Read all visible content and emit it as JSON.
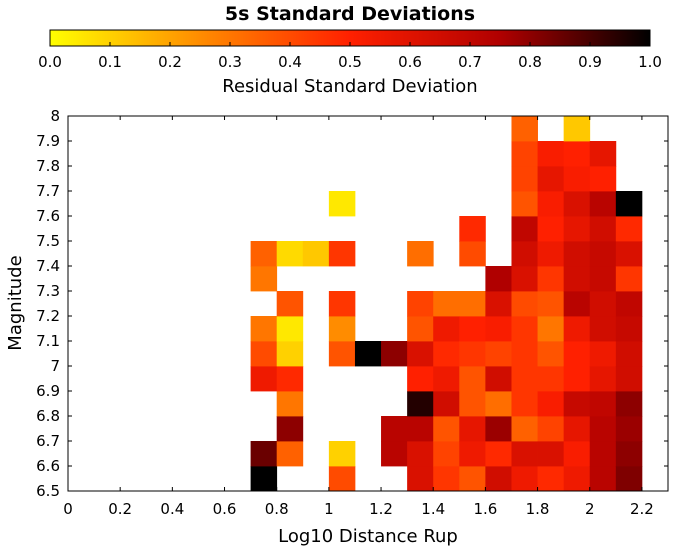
{
  "chart_data": {
    "type": "heatmap",
    "title": "5s Standard Deviations",
    "xlabel": "Log10 Distance Rup",
    "ylabel": "Magnitude",
    "colorbar_label": "Residual Standard Deviation",
    "colorscale": [
      "#ffff00",
      "#ff8c00",
      "#ff2000",
      "#b00000",
      "#000000"
    ],
    "colorbar_range": [
      0,
      1
    ],
    "colorbar_ticks": [
      "0.0",
      "0.1",
      "0.2",
      "0.3",
      "0.4",
      "0.5",
      "0.6",
      "0.7",
      "0.8",
      "0.9",
      "1.0"
    ],
    "xlim": [
      0,
      2.3
    ],
    "ylim": [
      6.5,
      8
    ],
    "xticks": [
      "0",
      "0.2",
      "0.4",
      "0.6",
      "0.8",
      "1",
      "1.2",
      "1.4",
      "1.6",
      "1.8",
      "2",
      "2.2"
    ],
    "yticks": [
      "6.5",
      "6.6",
      "6.7",
      "6.8",
      "6.9",
      "7",
      "7.1",
      "7.2",
      "7.3",
      "7.4",
      "7.5",
      "7.6",
      "7.7",
      "7.8",
      "7.9",
      "8"
    ],
    "grid": false,
    "x_bin_width": 0.1,
    "y_bin_height": 0.1,
    "cells": [
      {
        "x": 0.7,
        "y": 6.5,
        "v": 1.0
      },
      {
        "x": 0.7,
        "y": 6.6,
        "v": 0.85
      },
      {
        "x": 0.7,
        "y": 6.9,
        "v": 0.55
      },
      {
        "x": 0.7,
        "y": 7.0,
        "v": 0.4
      },
      {
        "x": 0.7,
        "y": 7.1,
        "v": 0.3
      },
      {
        "x": 0.7,
        "y": 7.3,
        "v": 0.3
      },
      {
        "x": 0.7,
        "y": 7.4,
        "v": 0.35
      },
      {
        "x": 0.8,
        "y": 6.6,
        "v": 0.35
      },
      {
        "x": 0.8,
        "y": 6.7,
        "v": 0.8
      },
      {
        "x": 0.8,
        "y": 6.8,
        "v": 0.3
      },
      {
        "x": 0.8,
        "y": 6.9,
        "v": 0.48
      },
      {
        "x": 0.8,
        "y": 7.0,
        "v": 0.1
      },
      {
        "x": 0.8,
        "y": 7.1,
        "v": 0.05
      },
      {
        "x": 0.8,
        "y": 7.2,
        "v": 0.38
      },
      {
        "x": 0.8,
        "y": 7.4,
        "v": 0.08
      },
      {
        "x": 0.9,
        "y": 7.4,
        "v": 0.12
      },
      {
        "x": 1.0,
        "y": 6.5,
        "v": 0.4
      },
      {
        "x": 1.0,
        "y": 6.6,
        "v": 0.1
      },
      {
        "x": 1.0,
        "y": 7.0,
        "v": 0.38
      },
      {
        "x": 1.0,
        "y": 7.1,
        "v": 0.25
      },
      {
        "x": 1.0,
        "y": 7.2,
        "v": 0.45
      },
      {
        "x": 1.0,
        "y": 7.4,
        "v": 0.45
      },
      {
        "x": 1.0,
        "y": 7.6,
        "v": 0.05
      },
      {
        "x": 1.1,
        "y": 7.0,
        "v": 1.0
      },
      {
        "x": 1.2,
        "y": 6.6,
        "v": 0.72
      },
      {
        "x": 1.2,
        "y": 6.7,
        "v": 0.72
      },
      {
        "x": 1.2,
        "y": 7.0,
        "v": 0.8
      },
      {
        "x": 1.3,
        "y": 6.5,
        "v": 0.62
      },
      {
        "x": 1.3,
        "y": 6.6,
        "v": 0.62
      },
      {
        "x": 1.3,
        "y": 6.7,
        "v": 0.72
      },
      {
        "x": 1.3,
        "y": 6.8,
        "v": 0.95
      },
      {
        "x": 1.3,
        "y": 6.9,
        "v": 0.5
      },
      {
        "x": 1.3,
        "y": 7.0,
        "v": 0.62
      },
      {
        "x": 1.3,
        "y": 7.1,
        "v": 0.38
      },
      {
        "x": 1.3,
        "y": 7.2,
        "v": 0.42
      },
      {
        "x": 1.3,
        "y": 7.4,
        "v": 0.32
      },
      {
        "x": 1.4,
        "y": 6.5,
        "v": 0.45
      },
      {
        "x": 1.4,
        "y": 6.6,
        "v": 0.42
      },
      {
        "x": 1.4,
        "y": 6.7,
        "v": 0.38
      },
      {
        "x": 1.4,
        "y": 6.8,
        "v": 0.65
      },
      {
        "x": 1.4,
        "y": 6.9,
        "v": 0.55
      },
      {
        "x": 1.4,
        "y": 7.0,
        "v": 0.48
      },
      {
        "x": 1.4,
        "y": 7.1,
        "v": 0.55
      },
      {
        "x": 1.4,
        "y": 7.2,
        "v": 0.32
      },
      {
        "x": 1.5,
        "y": 6.5,
        "v": 0.38
      },
      {
        "x": 1.5,
        "y": 6.6,
        "v": 0.55
      },
      {
        "x": 1.5,
        "y": 6.7,
        "v": 0.58
      },
      {
        "x": 1.5,
        "y": 6.8,
        "v": 0.38
      },
      {
        "x": 1.5,
        "y": 6.9,
        "v": 0.38
      },
      {
        "x": 1.5,
        "y": 7.0,
        "v": 0.45
      },
      {
        "x": 1.5,
        "y": 7.1,
        "v": 0.5
      },
      {
        "x": 1.5,
        "y": 7.2,
        "v": 0.32
      },
      {
        "x": 1.5,
        "y": 7.4,
        "v": 0.4
      },
      {
        "x": 1.5,
        "y": 7.5,
        "v": 0.48
      },
      {
        "x": 1.6,
        "y": 6.5,
        "v": 0.65
      },
      {
        "x": 1.6,
        "y": 6.6,
        "v": 0.48
      },
      {
        "x": 1.6,
        "y": 6.7,
        "v": 0.78
      },
      {
        "x": 1.6,
        "y": 6.8,
        "v": 0.32
      },
      {
        "x": 1.6,
        "y": 6.9,
        "v": 0.65
      },
      {
        "x": 1.6,
        "y": 7.0,
        "v": 0.42
      },
      {
        "x": 1.6,
        "y": 7.1,
        "v": 0.52
      },
      {
        "x": 1.6,
        "y": 7.2,
        "v": 0.62
      },
      {
        "x": 1.6,
        "y": 7.3,
        "v": 0.75
      },
      {
        "x": 1.7,
        "y": 6.5,
        "v": 0.55
      },
      {
        "x": 1.7,
        "y": 6.6,
        "v": 0.62
      },
      {
        "x": 1.7,
        "y": 6.7,
        "v": 0.35
      },
      {
        "x": 1.7,
        "y": 6.8,
        "v": 0.45
      },
      {
        "x": 1.7,
        "y": 6.9,
        "v": 0.45
      },
      {
        "x": 1.7,
        "y": 7.0,
        "v": 0.45
      },
      {
        "x": 1.7,
        "y": 7.1,
        "v": 0.45
      },
      {
        "x": 1.7,
        "y": 7.2,
        "v": 0.4
      },
      {
        "x": 1.7,
        "y": 7.3,
        "v": 0.62
      },
      {
        "x": 1.7,
        "y": 7.4,
        "v": 0.65
      },
      {
        "x": 1.7,
        "y": 7.5,
        "v": 0.7
      },
      {
        "x": 1.7,
        "y": 7.6,
        "v": 0.38
      },
      {
        "x": 1.7,
        "y": 7.7,
        "v": 0.42
      },
      {
        "x": 1.7,
        "y": 7.8,
        "v": 0.42
      },
      {
        "x": 1.7,
        "y": 7.9,
        "v": 0.35
      },
      {
        "x": 1.8,
        "y": 6.5,
        "v": 0.48
      },
      {
        "x": 1.8,
        "y": 6.6,
        "v": 0.62
      },
      {
        "x": 1.8,
        "y": 6.7,
        "v": 0.42
      },
      {
        "x": 1.8,
        "y": 6.8,
        "v": 0.52
      },
      {
        "x": 1.8,
        "y": 6.9,
        "v": 0.45
      },
      {
        "x": 1.8,
        "y": 7.0,
        "v": 0.38
      },
      {
        "x": 1.8,
        "y": 7.1,
        "v": 0.3
      },
      {
        "x": 1.8,
        "y": 7.2,
        "v": 0.38
      },
      {
        "x": 1.8,
        "y": 7.3,
        "v": 0.45
      },
      {
        "x": 1.8,
        "y": 7.4,
        "v": 0.55
      },
      {
        "x": 1.8,
        "y": 7.5,
        "v": 0.5
      },
      {
        "x": 1.8,
        "y": 7.6,
        "v": 0.52
      },
      {
        "x": 1.8,
        "y": 7.7,
        "v": 0.58
      },
      {
        "x": 1.8,
        "y": 7.8,
        "v": 0.52
      },
      {
        "x": 1.9,
        "y": 6.5,
        "v": 0.55
      },
      {
        "x": 1.9,
        "y": 6.6,
        "v": 0.52
      },
      {
        "x": 1.9,
        "y": 6.7,
        "v": 0.58
      },
      {
        "x": 1.9,
        "y": 6.8,
        "v": 0.68
      },
      {
        "x": 1.9,
        "y": 6.9,
        "v": 0.5
      },
      {
        "x": 1.9,
        "y": 7.0,
        "v": 0.5
      },
      {
        "x": 1.9,
        "y": 7.1,
        "v": 0.55
      },
      {
        "x": 1.9,
        "y": 7.2,
        "v": 0.72
      },
      {
        "x": 1.9,
        "y": 7.3,
        "v": 0.65
      },
      {
        "x": 1.9,
        "y": 7.4,
        "v": 0.65
      },
      {
        "x": 1.9,
        "y": 7.5,
        "v": 0.58
      },
      {
        "x": 1.9,
        "y": 7.6,
        "v": 0.62
      },
      {
        "x": 1.9,
        "y": 7.7,
        "v": 0.52
      },
      {
        "x": 1.9,
        "y": 7.8,
        "v": 0.5
      },
      {
        "x": 1.9,
        "y": 7.9,
        "v": 0.12
      },
      {
        "x": 2.0,
        "y": 6.5,
        "v": 0.72
      },
      {
        "x": 2.0,
        "y": 6.6,
        "v": 0.72
      },
      {
        "x": 2.0,
        "y": 6.7,
        "v": 0.72
      },
      {
        "x": 2.0,
        "y": 6.8,
        "v": 0.7
      },
      {
        "x": 2.0,
        "y": 6.9,
        "v": 0.58
      },
      {
        "x": 2.0,
        "y": 7.0,
        "v": 0.55
      },
      {
        "x": 2.0,
        "y": 7.1,
        "v": 0.65
      },
      {
        "x": 2.0,
        "y": 7.2,
        "v": 0.65
      },
      {
        "x": 2.0,
        "y": 7.3,
        "v": 0.68
      },
      {
        "x": 2.0,
        "y": 7.4,
        "v": 0.68
      },
      {
        "x": 2.0,
        "y": 7.5,
        "v": 0.65
      },
      {
        "x": 2.0,
        "y": 7.6,
        "v": 0.72
      },
      {
        "x": 2.0,
        "y": 7.7,
        "v": 0.5
      },
      {
        "x": 2.0,
        "y": 7.8,
        "v": 0.58
      },
      {
        "x": 2.1,
        "y": 6.5,
        "v": 0.82
      },
      {
        "x": 2.1,
        "y": 6.6,
        "v": 0.8
      },
      {
        "x": 2.1,
        "y": 6.7,
        "v": 0.78
      },
      {
        "x": 2.1,
        "y": 6.8,
        "v": 0.8
      },
      {
        "x": 2.1,
        "y": 6.9,
        "v": 0.65
      },
      {
        "x": 2.1,
        "y": 7.0,
        "v": 0.65
      },
      {
        "x": 2.1,
        "y": 7.1,
        "v": 0.68
      },
      {
        "x": 2.1,
        "y": 7.2,
        "v": 0.7
      },
      {
        "x": 2.1,
        "y": 7.3,
        "v": 0.45
      },
      {
        "x": 2.1,
        "y": 7.4,
        "v": 0.62
      },
      {
        "x": 2.1,
        "y": 7.5,
        "v": 0.48
      },
      {
        "x": 2.1,
        "y": 7.6,
        "v": 1.0
      }
    ]
  }
}
